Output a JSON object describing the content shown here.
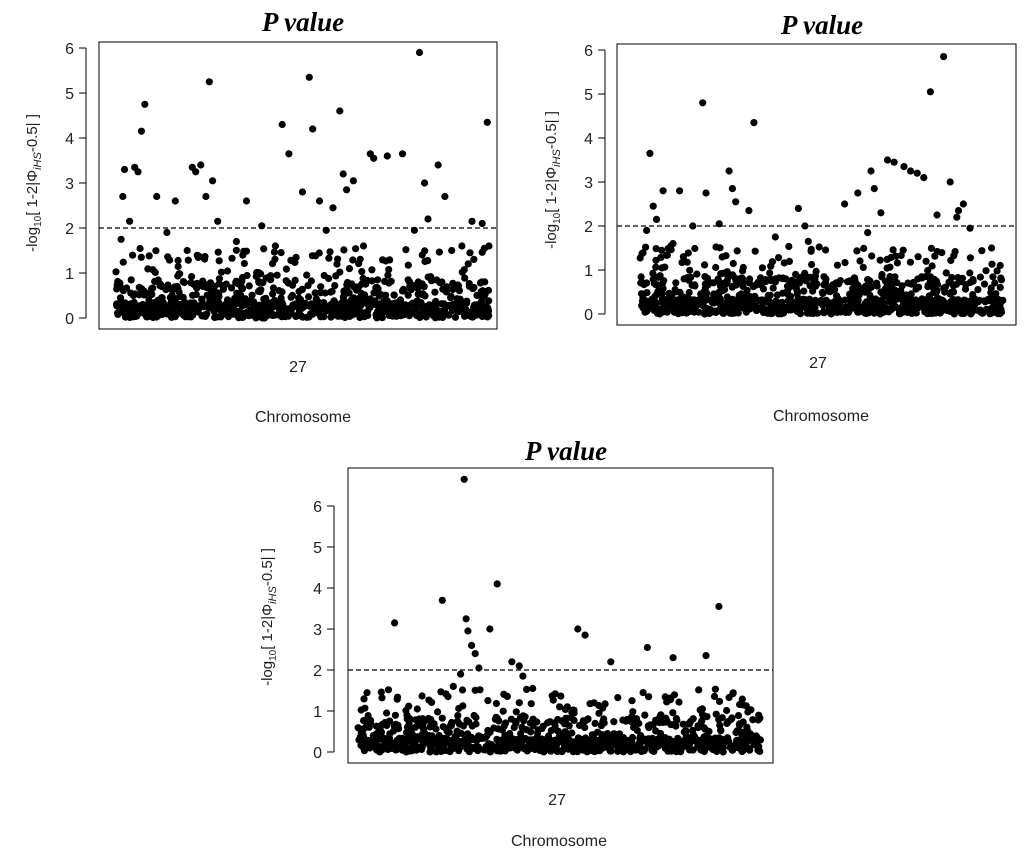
{
  "chart_data": [
    {
      "type": "scatter",
      "title": "P value",
      "xlabel": "Chromosome",
      "ylabel_main": "-log",
      "ylabel_sub": "10",
      "ylabel_rest": "[ 1-2|Φ",
      "ylabel_ihs": "iHS",
      "ylabel_end": "-0.5| ]",
      "x_tick_label": "27",
      "yticks": [
        0,
        1,
        2,
        3,
        4,
        5,
        6
      ],
      "ylim": [
        0,
        6
      ],
      "threshold": 2,
      "grid": false,
      "n_background_points": 950,
      "highlight_points": [
        [
          0.015,
          1.75
        ],
        [
          0.02,
          2.7
        ],
        [
          0.025,
          3.3
        ],
        [
          0.04,
          2.15
        ],
        [
          0.055,
          3.35
        ],
        [
          0.065,
          3.25
        ],
        [
          0.075,
          4.15
        ],
        [
          0.085,
          4.75
        ],
        [
          0.12,
          2.7
        ],
        [
          0.15,
          1.9
        ],
        [
          0.175,
          2.6
        ],
        [
          0.21,
          1.5
        ],
        [
          0.225,
          3.35
        ],
        [
          0.235,
          3.25
        ],
        [
          0.25,
          3.4
        ],
        [
          0.265,
          2.7
        ],
        [
          0.275,
          5.25
        ],
        [
          0.285,
          3.05
        ],
        [
          0.3,
          2.15
        ],
        [
          0.355,
          1.7
        ],
        [
          0.385,
          2.6
        ],
        [
          0.43,
          2.05
        ],
        [
          0.47,
          1.6
        ],
        [
          0.49,
          4.3
        ],
        [
          0.51,
          3.65
        ],
        [
          0.55,
          2.8
        ],
        [
          0.57,
          5.35
        ],
        [
          0.58,
          4.2
        ],
        [
          0.6,
          2.6
        ],
        [
          0.62,
          1.95
        ],
        [
          0.64,
          2.45
        ],
        [
          0.66,
          4.6
        ],
        [
          0.67,
          3.2
        ],
        [
          0.68,
          2.85
        ],
        [
          0.7,
          3.05
        ],
        [
          0.73,
          1.6
        ],
        [
          0.75,
          3.65
        ],
        [
          0.76,
          3.55
        ],
        [
          0.8,
          3.6
        ],
        [
          0.845,
          3.65
        ],
        [
          0.88,
          1.95
        ],
        [
          0.895,
          5.9
        ],
        [
          0.91,
          3.0
        ],
        [
          0.92,
          2.2
        ],
        [
          0.95,
          3.4
        ],
        [
          0.97,
          2.7
        ],
        [
          0.99,
          1.5
        ],
        [
          1.02,
          1.6
        ],
        [
          1.05,
          2.15
        ],
        [
          1.08,
          2.1
        ],
        [
          1.095,
          4.35
        ],
        [
          1.1,
          1.6
        ]
      ]
    },
    {
      "type": "scatter",
      "title": "P value",
      "xlabel": "Chromosome",
      "ylabel_main": "-log",
      "ylabel_sub": "10",
      "ylabel_rest": "[ 1-2|Φ",
      "ylabel_ihs": "iHS",
      "ylabel_end": "-0.5| ]",
      "x_tick_label": "27",
      "yticks": [
        0,
        1,
        2,
        3,
        4,
        5,
        6
      ],
      "ylim": [
        0,
        6
      ],
      "threshold": 2,
      "grid": false,
      "n_background_points": 950,
      "highlight_points": [
        [
          0.02,
          1.9
        ],
        [
          0.03,
          3.65
        ],
        [
          0.04,
          2.45
        ],
        [
          0.05,
          2.15
        ],
        [
          0.07,
          2.8
        ],
        [
          0.1,
          1.6
        ],
        [
          0.12,
          2.8
        ],
        [
          0.16,
          2.0
        ],
        [
          0.19,
          4.8
        ],
        [
          0.2,
          2.75
        ],
        [
          0.24,
          2.05
        ],
        [
          0.27,
          3.25
        ],
        [
          0.28,
          2.85
        ],
        [
          0.29,
          2.55
        ],
        [
          0.33,
          2.35
        ],
        [
          0.345,
          4.35
        ],
        [
          0.41,
          1.75
        ],
        [
          0.48,
          2.4
        ],
        [
          0.5,
          2.0
        ],
        [
          0.51,
          1.65
        ],
        [
          0.62,
          2.5
        ],
        [
          0.66,
          2.75
        ],
        [
          0.7,
          3.25
        ],
        [
          0.71,
          2.85
        ],
        [
          0.73,
          2.3
        ],
        [
          0.75,
          3.5
        ],
        [
          0.77,
          3.45
        ],
        [
          0.8,
          3.35
        ],
        [
          0.82,
          3.25
        ],
        [
          0.84,
          3.2
        ],
        [
          0.86,
          3.1
        ],
        [
          0.88,
          5.05
        ],
        [
          0.9,
          2.25
        ],
        [
          0.92,
          5.85
        ],
        [
          0.94,
          3.0
        ],
        [
          0.965,
          2.35
        ],
        [
          0.98,
          2.5
        ],
        [
          1.0,
          1.95
        ],
        [
          0.96,
          2.2
        ],
        [
          0.69,
          1.85
        ]
      ]
    },
    {
      "type": "scatter",
      "title": "P value",
      "xlabel": "Chromosome",
      "ylabel_main": "-log",
      "ylabel_sub": "10",
      "ylabel_rest": "[ 1-2|Φ",
      "ylabel_ihs": "iHS",
      "ylabel_end": "-0.5| ]",
      "x_tick_label": "27",
      "yticks": [
        0,
        1,
        2,
        3,
        4,
        5,
        6
      ],
      "ylim": [
        0,
        6.6
      ],
      "threshold": 2,
      "grid": false,
      "n_background_points": 950,
      "highlight_points": [
        [
          0.1,
          3.15
        ],
        [
          0.23,
          3.7
        ],
        [
          0.28,
          1.9
        ],
        [
          0.29,
          6.65
        ],
        [
          0.295,
          3.25
        ],
        [
          0.3,
          2.95
        ],
        [
          0.31,
          2.6
        ],
        [
          0.33,
          2.05
        ],
        [
          0.36,
          3.0
        ],
        [
          0.38,
          4.1
        ],
        [
          0.42,
          2.2
        ],
        [
          0.44,
          2.1
        ],
        [
          0.45,
          1.85
        ],
        [
          0.6,
          3.0
        ],
        [
          0.62,
          2.85
        ],
        [
          0.69,
          2.2
        ],
        [
          0.79,
          2.55
        ],
        [
          0.86,
          2.3
        ],
        [
          0.95,
          2.35
        ],
        [
          0.985,
          3.55
        ],
        [
          0.32,
          2.4
        ],
        [
          0.26,
          1.6
        ]
      ]
    }
  ]
}
